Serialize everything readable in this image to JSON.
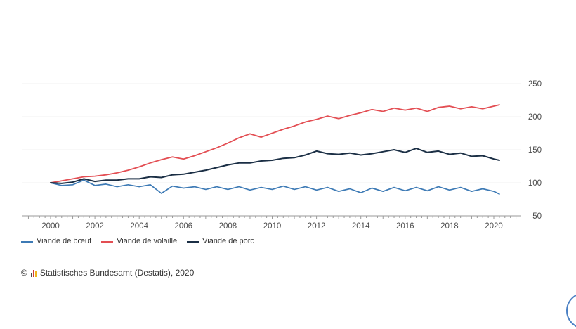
{
  "chart_data": {
    "type": "line",
    "title": "",
    "xlabel": "",
    "ylabel": "",
    "x_unit": "year (semi-annual points)",
    "xlim": [
      1999,
      2021.25
    ],
    "ylim": [
      50,
      250
    ],
    "grid": "horizontal",
    "legend_position": "bottom-left",
    "y_axis_side": "right",
    "x": [
      2000,
      2000.5,
      2001,
      2001.5,
      2002,
      2002.5,
      2003,
      2003.5,
      2004,
      2004.5,
      2005,
      2005.5,
      2006,
      2006.5,
      2007,
      2007.5,
      2008,
      2008.5,
      2009,
      2009.5,
      2010,
      2010.5,
      2011,
      2011.5,
      2012,
      2012.5,
      2013,
      2013.5,
      2014,
      2014.5,
      2015,
      2015.5,
      2016,
      2016.5,
      2017,
      2017.5,
      2018,
      2018.5,
      2019,
      2019.5,
      2020,
      2020.25
    ],
    "series": [
      {
        "name": "Viande de bœuf",
        "color": "#3d7ab5",
        "stroke_width": 1.7,
        "values": [
          100,
          96,
          97,
          104,
          96,
          98,
          94,
          97,
          94,
          97,
          84,
          95,
          92,
          94,
          90,
          94,
          90,
          94,
          89,
          93,
          90,
          95,
          90,
          94,
          89,
          93,
          87,
          91,
          85,
          92,
          87,
          93,
          88,
          93,
          88,
          94,
          89,
          93,
          87,
          91,
          87,
          83
        ]
      },
      {
        "name": "Viande de volaille",
        "color": "#e34e53",
        "stroke_width": 1.8,
        "values": [
          100,
          103,
          106,
          109,
          110,
          112,
          115,
          119,
          124,
          130,
          135,
          139,
          136,
          141,
          147,
          153,
          160,
          168,
          174,
          169,
          175,
          181,
          186,
          192,
          196,
          201,
          197,
          202,
          206,
          211,
          208,
          213,
          210,
          213,
          208,
          214,
          216,
          212,
          215,
          212,
          216,
          218
        ]
      },
      {
        "name": "Viande de porc",
        "color": "#1b2f45",
        "stroke_width": 2,
        "values": [
          100,
          99,
          101,
          106,
          102,
          104,
          104,
          106,
          106,
          109,
          108,
          112,
          113,
          116,
          119,
          123,
          127,
          130,
          130,
          133,
          134,
          137,
          138,
          142,
          148,
          144,
          143,
          145,
          142,
          144,
          147,
          150,
          146,
          152,
          146,
          148,
          143,
          145,
          140,
          141,
          136,
          134
        ]
      }
    ],
    "xticks_labeled": [
      2000,
      2002,
      2004,
      2006,
      2008,
      2010,
      2012,
      2014,
      2016,
      2018,
      2020
    ],
    "yticks": [
      50,
      100,
      150,
      200,
      250
    ],
    "colors": {
      "gridline": "#f0f0f0",
      "axis": "#9a9a9a",
      "tick_label": "#4d4d4d"
    }
  },
  "footer": {
    "copyright_symbol": "©",
    "source": "Statistisches Bundesamt (Destatis), 2020"
  },
  "widgets": {
    "floating_button_color": "#4a80c4"
  }
}
